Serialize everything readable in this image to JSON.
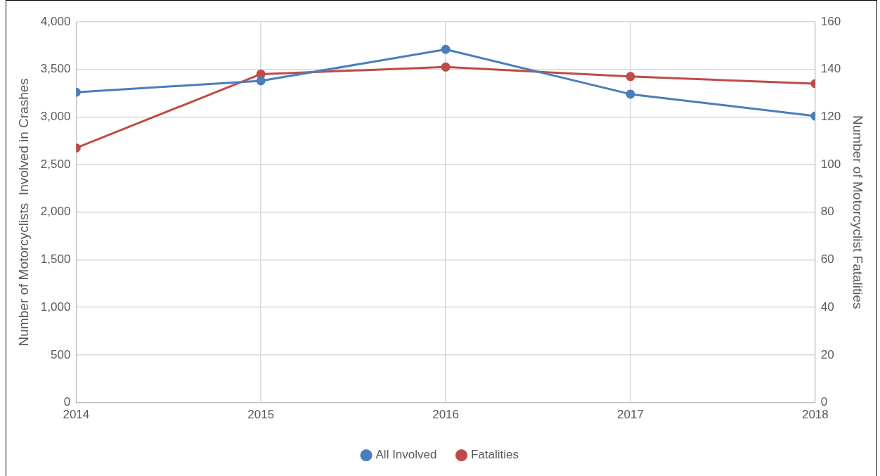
{
  "chart_data": {
    "type": "line",
    "xlabel": null,
    "ylabel": "Number of Motorcyclists  Involved in Crashes",
    "y2label": "Number of Motorcyclist Fatalities",
    "x": [
      2014,
      2015,
      2016,
      2017,
      2018
    ],
    "xlim": [
      2014,
      2018
    ],
    "xticks": [
      2014,
      2015,
      2016,
      2017,
      2018
    ],
    "ylim": [
      0,
      4000
    ],
    "yticks": [
      0,
      500,
      {
        "value": 1000,
        "label": "1,000"
      },
      {
        "value": 1500,
        "label": "1,500"
      },
      {
        "value": 2000,
        "label": "2,000"
      },
      {
        "value": 2500,
        "label": "2,500"
      },
      {
        "value": 3000,
        "label": "3,000"
      },
      {
        "value": 3500,
        "label": "3,500"
      },
      {
        "value": 4000,
        "label": "4,000"
      }
    ],
    "y2lim": [
      0,
      160
    ],
    "y2ticks": [
      0,
      20,
      40,
      60,
      80,
      100,
      120,
      140,
      160
    ],
    "series": [
      {
        "name": "All Involved",
        "color": "#4a7ebb",
        "values": [
          3260,
          3380,
          3710,
          3240,
          3010
        ]
      },
      {
        "name": "Fatalities",
        "color": "#be4b48",
        "values": [
          107,
          138,
          141,
          137,
          134
        ],
        "axis": "y2"
      }
    ],
    "grid": true,
    "legend": "bottom",
    "marker": "circle",
    "line_style": "solid"
  }
}
